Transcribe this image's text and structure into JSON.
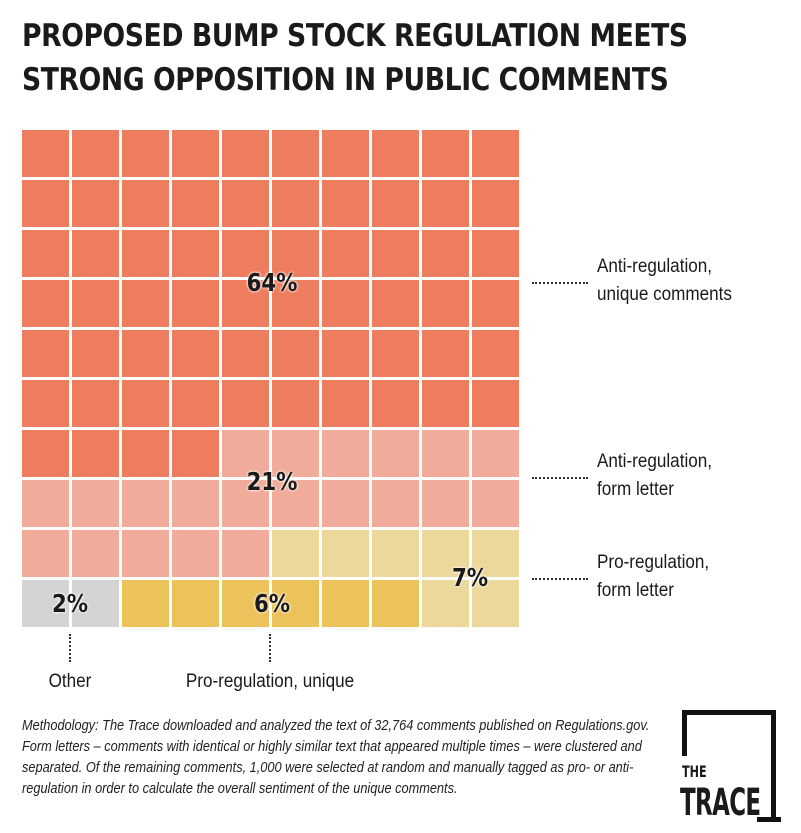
{
  "title_lines": [
    "PROPOSED BUMP STOCK REGULATION MEETS",
    "STRONG OPPOSITION IN PUBLIC COMMENTS"
  ],
  "chart_data": {
    "type": "waffle",
    "grid": [
      10,
      10
    ],
    "categories": [
      {
        "label": "Anti-regulation, unique comments",
        "label_lines": [
          "Anti-regulation,",
          "unique comments"
        ],
        "value": 64,
        "value_label": "64%",
        "color": "#ee7d5f"
      },
      {
        "label": "Anti-regulation, form letter",
        "label_lines": [
          "Anti-regulation,",
          "form letter"
        ],
        "value": 21,
        "value_label": "21%",
        "color": "#f0ab9a"
      },
      {
        "label": "Pro-regulation, form letter",
        "label_lines": [
          "Pro-regulation,",
          "form letter"
        ],
        "value": 7,
        "value_label": "7%",
        "color": "#ecd89a"
      },
      {
        "label": "Pro-regulation, unique",
        "value": 6,
        "value_label": "6%",
        "color": "#ecc35a"
      },
      {
        "label": "Other",
        "value": 2,
        "value_label": "2%",
        "color": "#d4d4d4"
      }
    ]
  },
  "methodology": "Methodology: The Trace downloaded and analyzed the text of 32,764 comments published on Regulations.gov. Form letters – comments with identical or highly similar text that appeared multiple times – were clustered and separated. Of the remaining comments, 1,000 were selected at random and manually tagged as pro- or anti-regulation in order to calculate the overall sentiment of the unique comments.",
  "logo": {
    "line1": "THE",
    "line2": "TRACE"
  }
}
